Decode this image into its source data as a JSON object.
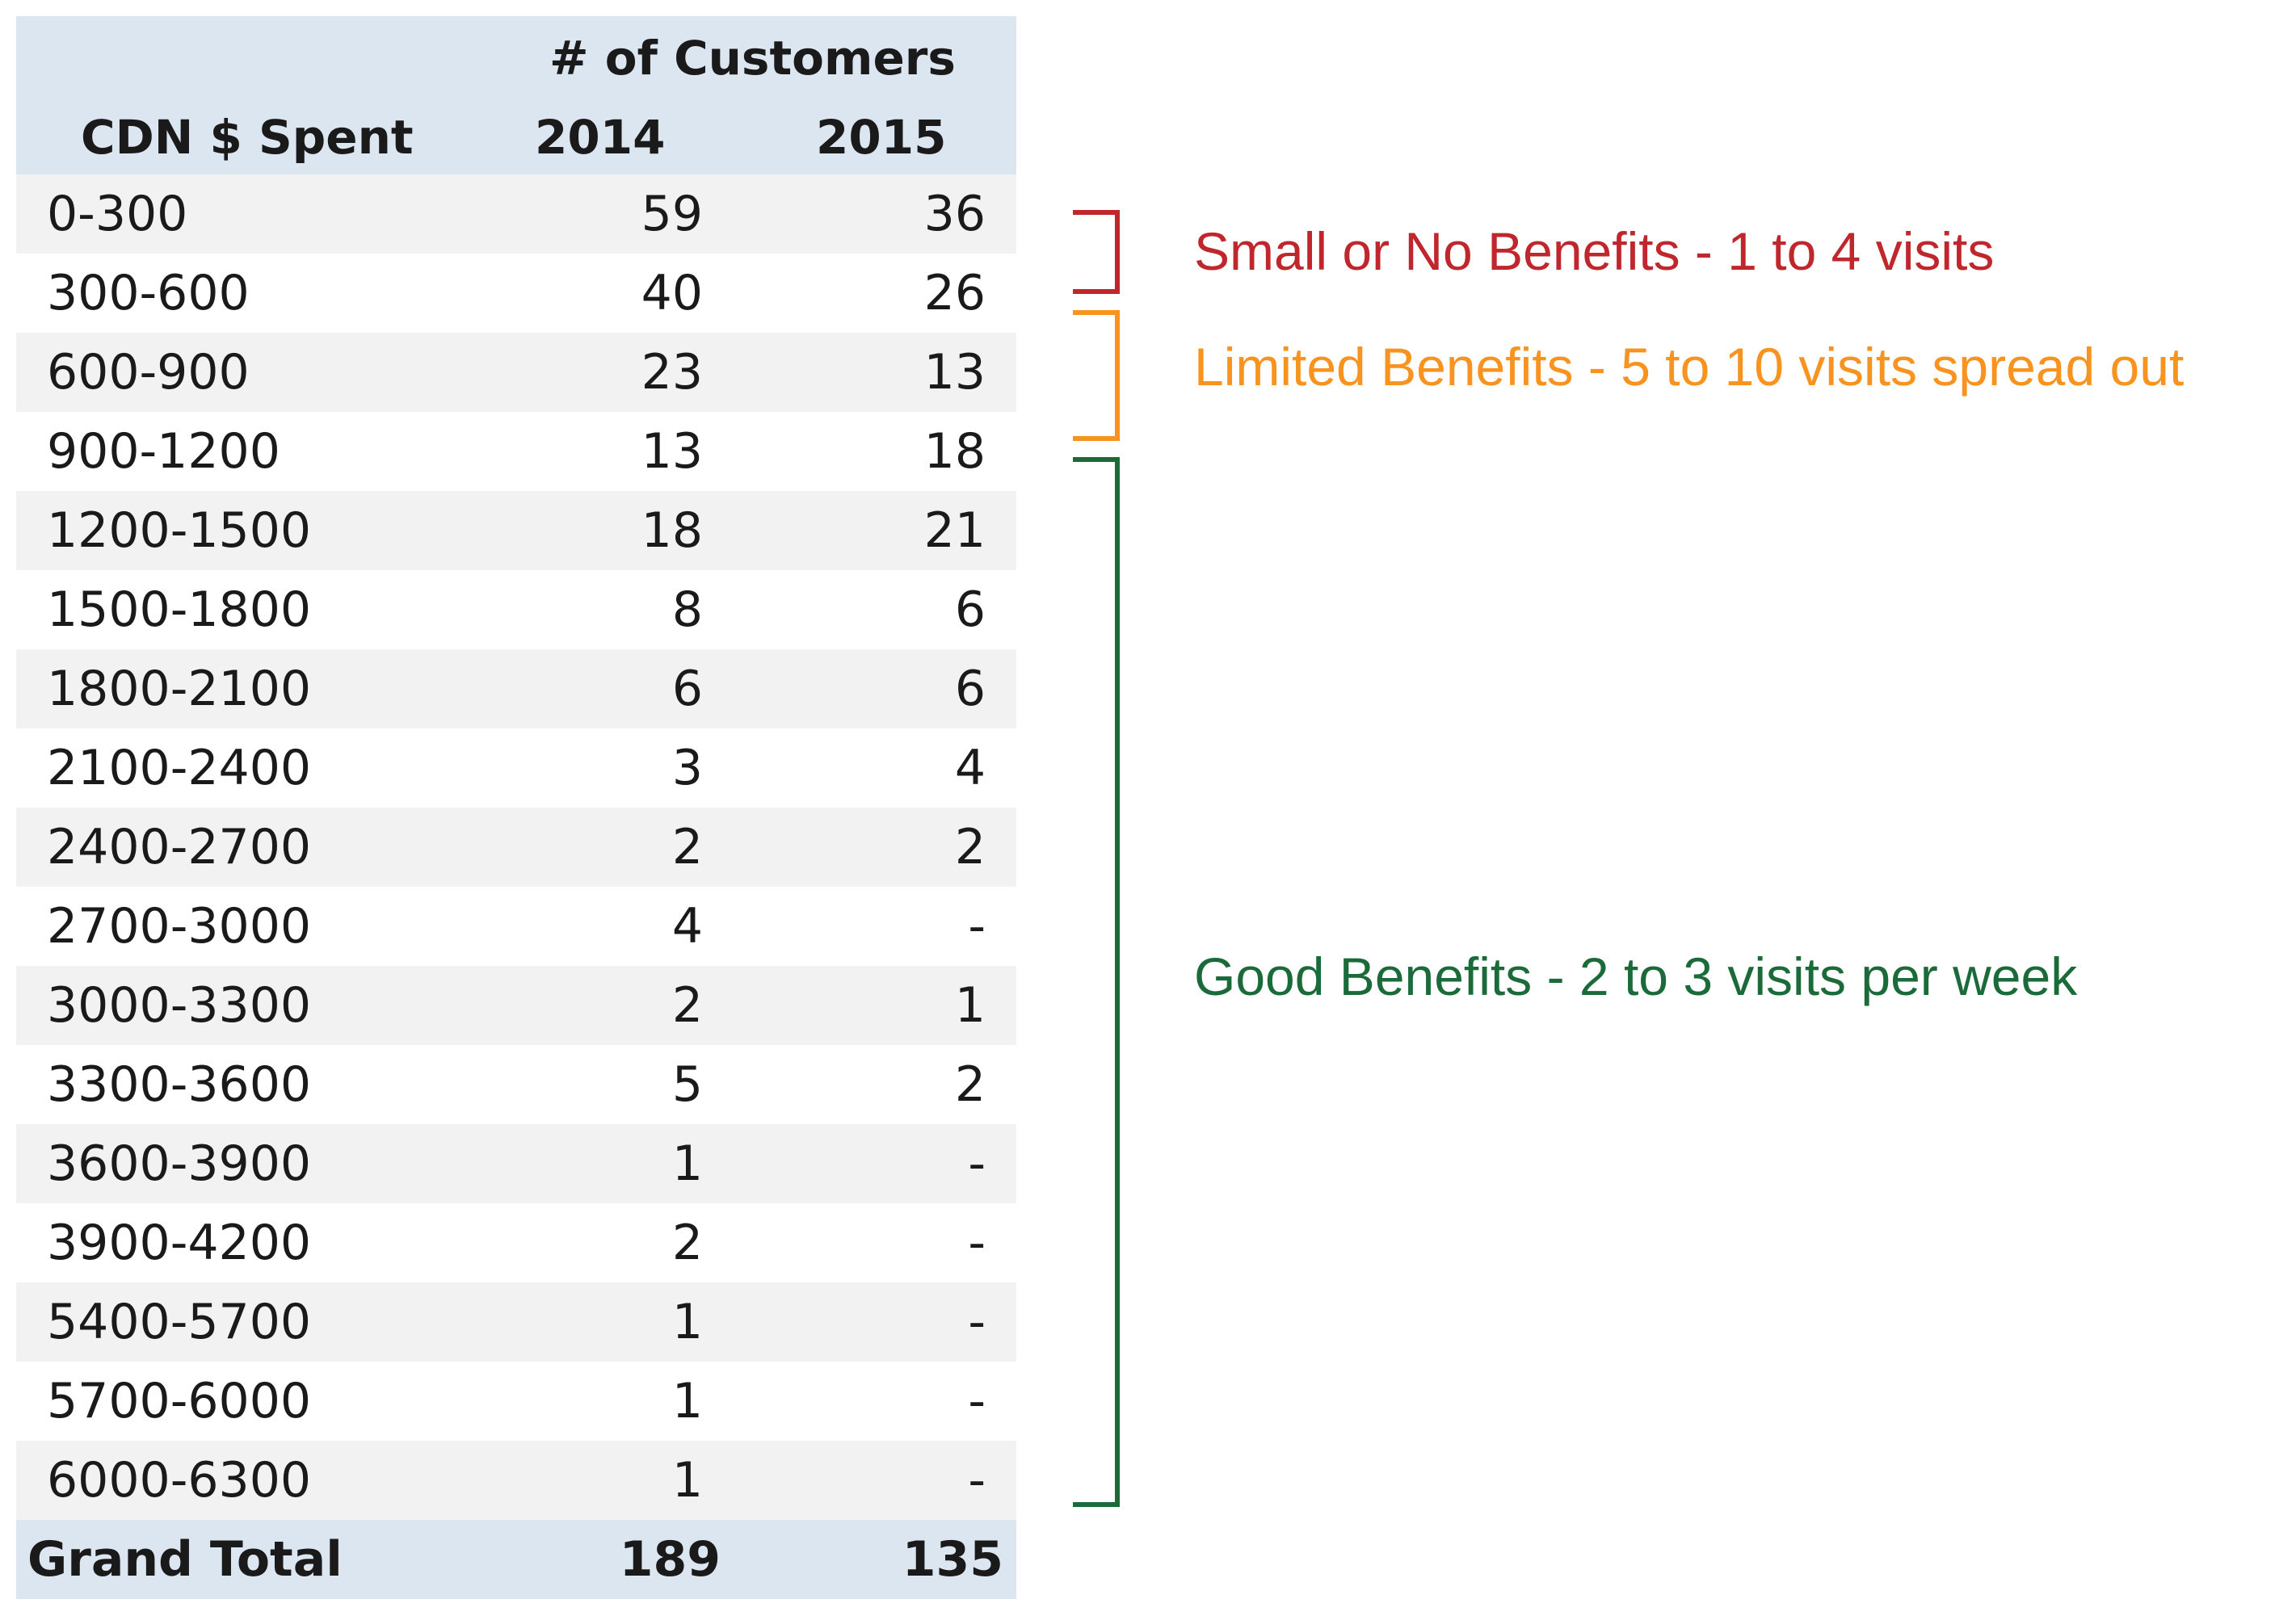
{
  "header": {
    "group_label": "# of Customers",
    "col_range": "CDN $ Spent",
    "col_year_a": "2014",
    "col_year_b": "2015"
  },
  "rows": [
    {
      "range": "0-300",
      "y2014": "59",
      "y2015": "36"
    },
    {
      "range": "300-600",
      "y2014": "40",
      "y2015": "26"
    },
    {
      "range": "600-900",
      "y2014": "23",
      "y2015": "13"
    },
    {
      "range": "900-1200",
      "y2014": "13",
      "y2015": "18"
    },
    {
      "range": "1200-1500",
      "y2014": "18",
      "y2015": "21"
    },
    {
      "range": "1500-1800",
      "y2014": "8",
      "y2015": "6"
    },
    {
      "range": "1800-2100",
      "y2014": "6",
      "y2015": "6"
    },
    {
      "range": "2100-2400",
      "y2014": "3",
      "y2015": "4"
    },
    {
      "range": "2400-2700",
      "y2014": "2",
      "y2015": "2"
    },
    {
      "range": "2700-3000",
      "y2014": "4",
      "y2015": "-"
    },
    {
      "range": "3000-3300",
      "y2014": "2",
      "y2015": "1"
    },
    {
      "range": "3300-3600",
      "y2014": "5",
      "y2015": "2"
    },
    {
      "range": "3600-3900",
      "y2014": "1",
      "y2015": "-"
    },
    {
      "range": "3900-4200",
      "y2014": "2",
      "y2015": "-"
    },
    {
      "range": "5400-5700",
      "y2014": "1",
      "y2015": "-"
    },
    {
      "range": "5700-6000",
      "y2014": "1",
      "y2015": "-"
    },
    {
      "range": "6000-6300",
      "y2014": "1",
      "y2015": "-"
    }
  ],
  "total": {
    "label": "Grand Total",
    "y2014": "189",
    "y2015": "135"
  },
  "annotations": {
    "small": {
      "text": "Small or No Benefits - 1 to 4 visits",
      "color": "#c0272d"
    },
    "limited": {
      "text": "Limited Benefits - 5 to 10 visits spread out",
      "color": "#f7931e"
    },
    "good": {
      "text": "Good Benefits - 2 to 3 visits per week",
      "color": "#1b6b3a"
    }
  },
  "colors": {
    "header_fill": "#dce6f1",
    "row_shade": "#f2f2f2"
  }
}
